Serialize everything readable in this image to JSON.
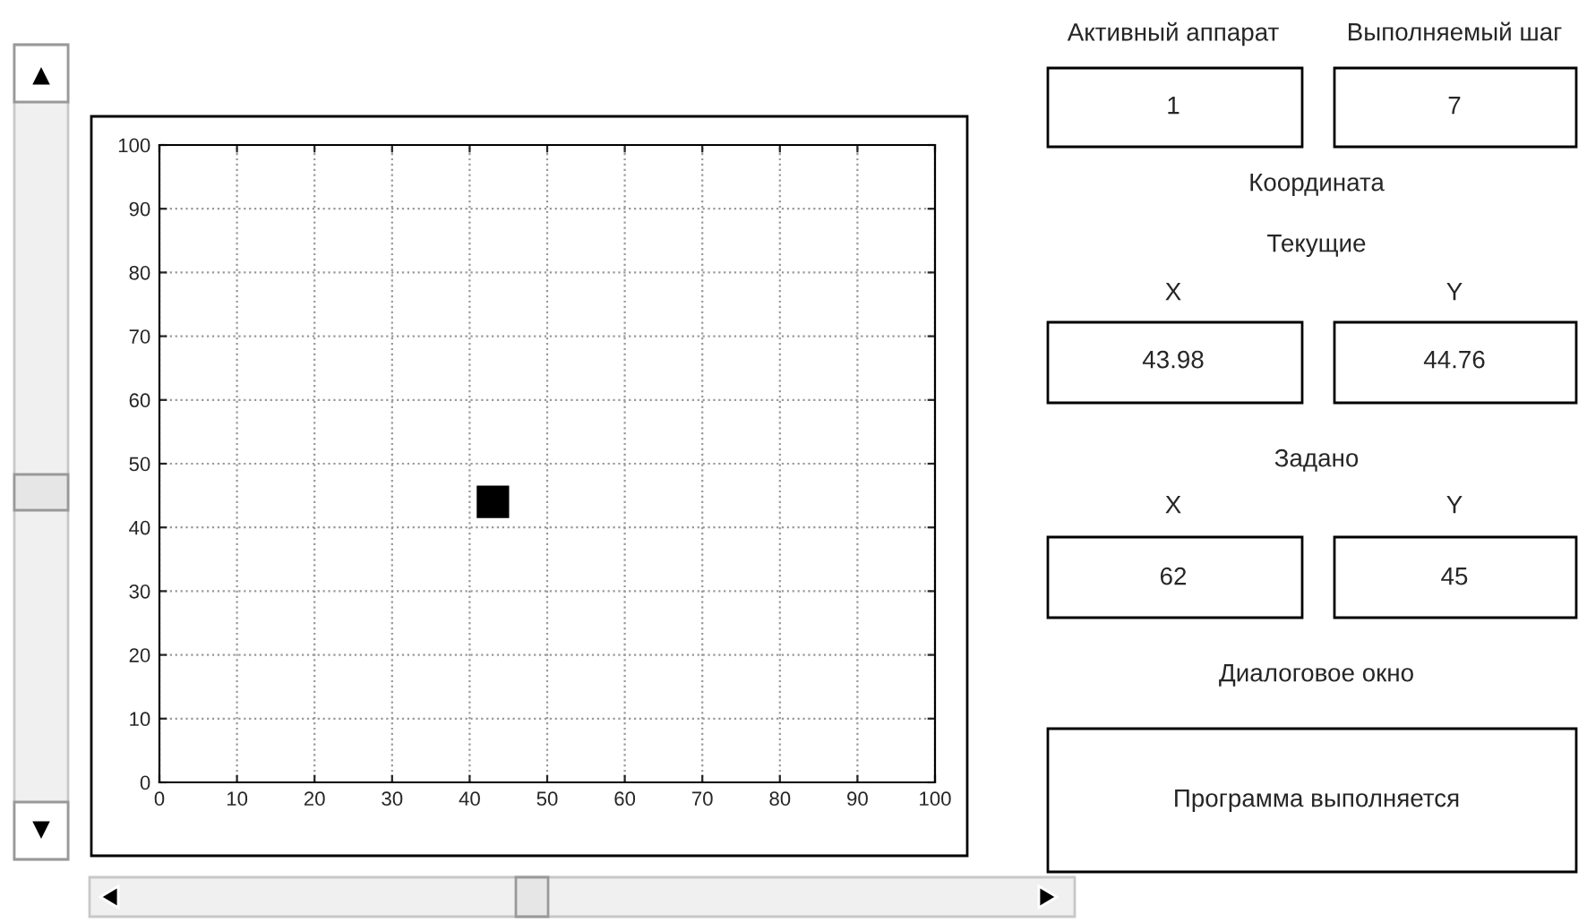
{
  "chart_data": {
    "type": "scatter",
    "x": [
      43
    ],
    "values": [
      44
    ],
    "color": "#000000",
    "marker": "square",
    "xlim": [
      0,
      100
    ],
    "ylim": [
      0,
      100
    ],
    "xticks": [
      0,
      10,
      20,
      30,
      40,
      50,
      60,
      70,
      80,
      90,
      100
    ],
    "yticks": [
      0,
      10,
      20,
      30,
      40,
      50,
      60,
      70,
      80,
      90,
      100
    ],
    "grid": true,
    "annotations": [
      "Активный аппарат",
      "Выполняемый шаг",
      "1",
      "7",
      "Координата",
      "Текущие",
      "X",
      "Y",
      "43.98",
      "44.76",
      "Задано",
      "X",
      "Y",
      "62",
      "45",
      "Диалоговое окно",
      "Программа выполняется"
    ]
  }
}
